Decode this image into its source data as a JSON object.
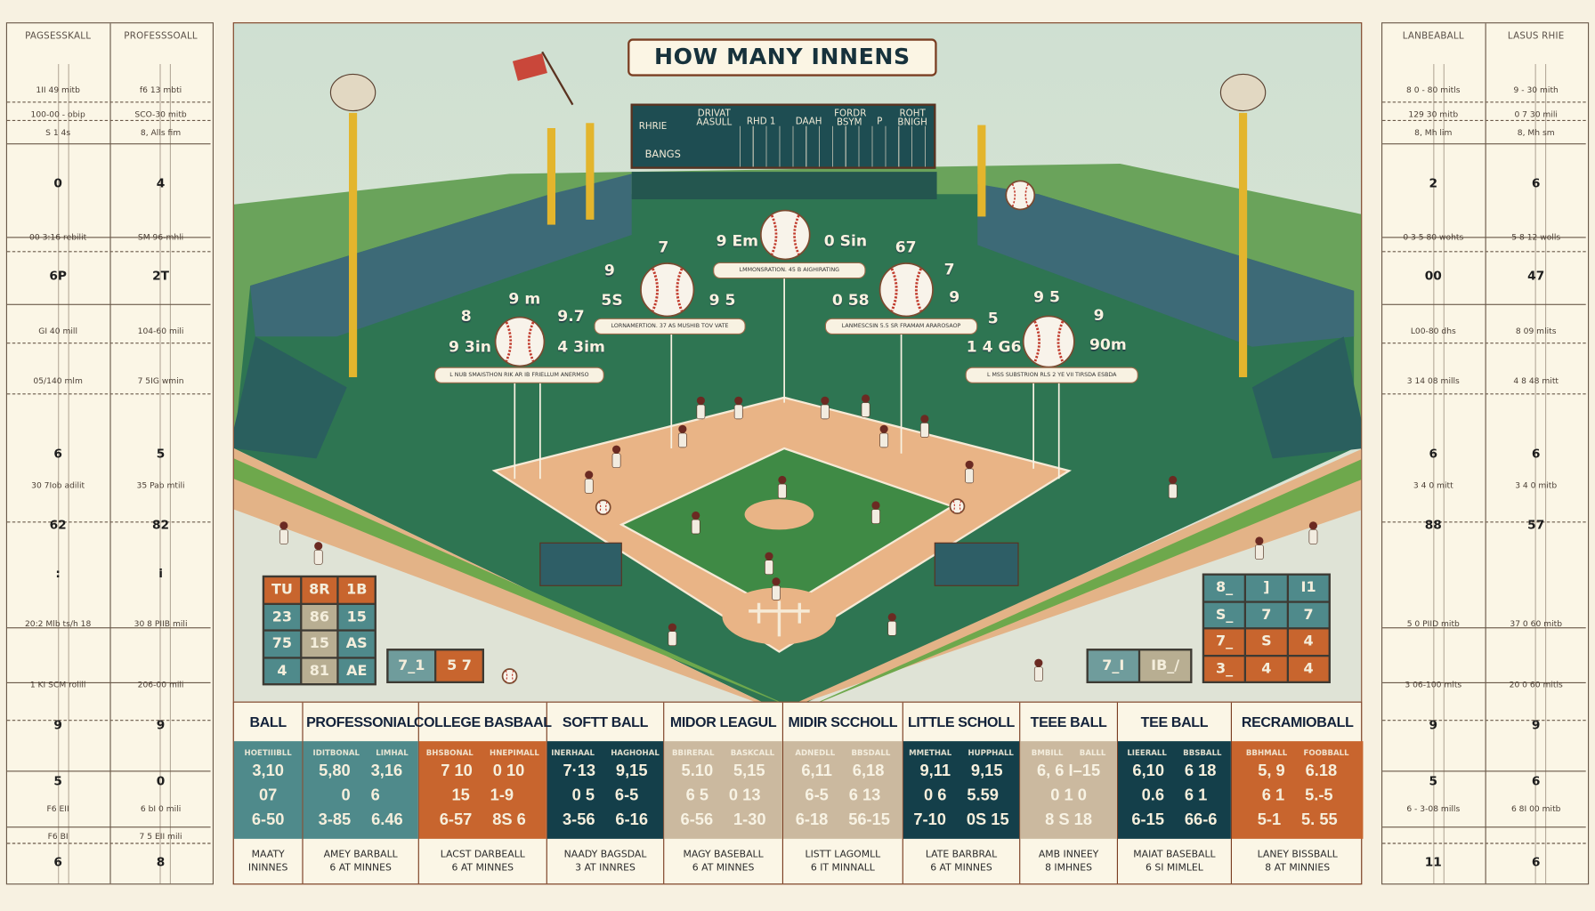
{
  "title": "HOW MANY INNENS",
  "colors": {
    "teal": "#4f8a8b",
    "orange": "#c8652e",
    "dark_teal": "#143f4a",
    "tan": "#cbb99f",
    "field_green": "#2f7a55",
    "dirt": "#e9b486",
    "cream": "#fbf6e6"
  },
  "scoreboard": {
    "labels": [
      "RHRIE",
      "DRIVAT AASULL",
      "RHD 1",
      "DAAH",
      "FORDR BSYM",
      "P",
      "ROHT BNIGH",
      "BANGS"
    ]
  },
  "left_panel": {
    "headers": [
      "PAGSESSKALL",
      "PROFESSSOALL"
    ],
    "col1": [
      "1II 49 mitb",
      "100-00 - obip",
      "S  1  4s",
      "0",
      "00 3:16 rebilit",
      "6P",
      "GI 40 mill",
      "05/140 mlm",
      "6",
      "30 7Iob adilit",
      "62",
      ":",
      "20:2 Mlb ts/h 18",
      "1 KI SCM rolill",
      "9",
      "5",
      "F6 EII",
      "F6 BI",
      "6"
    ],
    "col2": [
      "f6 13 mbti",
      "SCO-30 mitb",
      "8,  Alls  fim",
      "4",
      "SM 96-mhli",
      "2T",
      "104-60 mili",
      "7 5IG wmin",
      "5",
      "35 Pab mtili",
      "82",
      "i",
      "30 8 PIIB mili",
      "206-00 mili",
      "9",
      "0",
      "6 bI 0 mili",
      "7 5 EII mili",
      "8"
    ]
  },
  "right_panel": {
    "headers": [
      "LANBEABALL",
      "LASUS RHIE"
    ],
    "col1": [
      "8 0 - 80 mitls",
      "129 30 mitb",
      "8,  Mh  lim",
      "2",
      "0 3 5 80 wohts",
      "00",
      "L00-80 dhs",
      "3 14 08 mills",
      "6",
      "3 4 0 mitt",
      "88",
      "",
      "5 0 PIID mitb",
      "3 06-100 mlts",
      "9",
      "5",
      "6 - 3-08 mills",
      "",
      "11"
    ],
    "col2": [
      "9 - 30 mith",
      "0 7 30 mili",
      "8,  Mh  sm",
      "6",
      "5 8 12 wolls",
      "47",
      "8 09 mlits",
      "4 8 48 mitt",
      "6",
      "3 4 0 mitb",
      "57",
      "",
      "37 0 60 mitb",
      "20 0 60 mitls",
      "9",
      "6",
      "6 8I 00 mitb",
      "",
      "6"
    ]
  },
  "field_labels": [
    "9 Em",
    "0 Sin",
    "7",
    "67",
    "9",
    "5S",
    "9 5",
    "0 58",
    "7",
    "9",
    "8",
    "9 m",
    "9.7",
    "9 3in",
    "4 3im",
    "5",
    "9 5",
    "9",
    "1 4 G6",
    "90m"
  ],
  "captions": [
    "LMMONSRATION. 45  B AIGHIRATING",
    "LORNAMERTION. 37  AS MUSHIB TOV VATE",
    "LANMESCSIN 5.5  SR  FRAMAM ARAROSAOP",
    "L NUB SMAISTHON RIK  AR  IB FRIELLUM ANERMSO",
    "L MSS SUBSTRION RLS  2 YE VII TIRSDA ESBDA"
  ],
  "mini_left": {
    "grid": [
      "TU",
      "8R",
      "1B",
      "23",
      "86",
      "15",
      "75",
      "15",
      "AS",
      "4",
      "81",
      "AE"
    ],
    "pair": [
      "7_1",
      "5 7"
    ]
  },
  "mini_right": {
    "grid": [
      "8_",
      "]",
      "I1",
      "S_",
      "7",
      "7",
      "7_",
      "S",
      "4",
      "3_",
      "4",
      "4"
    ],
    "pair": [
      "7_I",
      "IB_/"
    ]
  },
  "table": [
    {
      "name": "BALL",
      "color": "teal",
      "subs": [
        "HOETIIIBLL"
      ],
      "rows": [
        [
          "3,10"
        ],
        [
          "07"
        ],
        [
          "6-50"
        ]
      ],
      "foot": [
        "MAATY",
        "ININNES"
      ]
    },
    {
      "name": "PROFESSONIAL",
      "color": "teal",
      "subs": [
        "IDITBONAL",
        "LIMHAL"
      ],
      "rows": [
        [
          "5,80",
          "3,16"
        ],
        [
          "0",
          "6"
        ],
        [
          "3-85",
          "6.46"
        ]
      ],
      "foot": [
        "AMEY BARBALL",
        "6 AT MINNES"
      ]
    },
    {
      "name": "COLLEGE BASBAAL",
      "color": "orange",
      "subs": [
        "BHSBONAL",
        "HNEPIMALL"
      ],
      "rows": [
        [
          "7 10",
          "0 10"
        ],
        [
          "15",
          "1-9"
        ],
        [
          "6-57",
          "8S 6"
        ]
      ],
      "foot": [
        "LACST DARBEALL",
        "6 AT MINNES"
      ]
    },
    {
      "name": "SOFTT BALL",
      "color": "dark_teal",
      "subs": [
        "INERHAAL",
        "HAGHOHAL"
      ],
      "rows": [
        [
          "7·13",
          "9,15"
        ],
        [
          "0 5",
          "6-5"
        ],
        [
          "3-56",
          "6-16"
        ]
      ],
      "foot": [
        "NAADY BAGSDAL",
        "3 AT INNRES"
      ]
    },
    {
      "name": "MIDOR LEAGUL",
      "color": "tan",
      "subs": [
        "BBIRERAL",
        "BASKCALL"
      ],
      "rows": [
        [
          "5.10",
          "5,15"
        ],
        [
          "6 5",
          "0 13"
        ],
        [
          "6-56",
          "1-30"
        ]
      ],
      "foot": [
        "MAGY BASEBALL",
        "6 AT MINNES"
      ]
    },
    {
      "name": "MIDIR SCCHOLL",
      "color": "tan",
      "subs": [
        "ADNEDLL",
        "BBSDALL"
      ],
      "rows": [
        [
          "6,11",
          "6,18"
        ],
        [
          "6-5",
          "6 13"
        ],
        [
          "6-18",
          "56-15"
        ]
      ],
      "foot": [
        "LISTT LAGOMLL",
        "6 IT MINNALL"
      ]
    },
    {
      "name": "LITTLE SCHOLL",
      "color": "dark_teal",
      "subs": [
        "MMETHAL",
        "HUPPHALL"
      ],
      "rows": [
        [
          "9,11",
          "9,15"
        ],
        [
          "0 6",
          "5.59"
        ],
        [
          "7-10",
          "0S 15"
        ]
      ],
      "foot": [
        "LATE BARBRAL",
        "6 AT MINNES"
      ]
    },
    {
      "name": "TEEE BALL",
      "color": "tan",
      "subs": [
        "BMBILL",
        "BALLL"
      ],
      "rows": [
        [
          "6, 6 I–15"
        ],
        [
          "0 1 0"
        ],
        [
          "8 S 18"
        ]
      ],
      "foot": [
        "AMB INNEEY",
        "8 IMHNES"
      ]
    },
    {
      "name": "TEE BALL",
      "color": "dark_teal",
      "subs": [
        "LIEERALL",
        "BBSBALL"
      ],
      "rows": [
        [
          "6,10",
          "6 18"
        ],
        [
          "0.6",
          "6 1"
        ],
        [
          "6-15",
          "66-6"
        ]
      ],
      "foot": [
        "MAIAT BASEBALL",
        "6 SI MIMLEL"
      ]
    },
    {
      "name": "RECRAMIOBALL",
      "color": "orange",
      "subs": [
        "BBHMALL",
        "FOOBBALL"
      ],
      "rows": [
        [
          "5, 9",
          "6.18"
        ],
        [
          "6 1",
          "5.-5"
        ],
        [
          "5-1",
          "5. 55"
        ]
      ],
      "foot": [
        "LANEY BISSBALL",
        "8 AT MINNIES"
      ]
    }
  ]
}
